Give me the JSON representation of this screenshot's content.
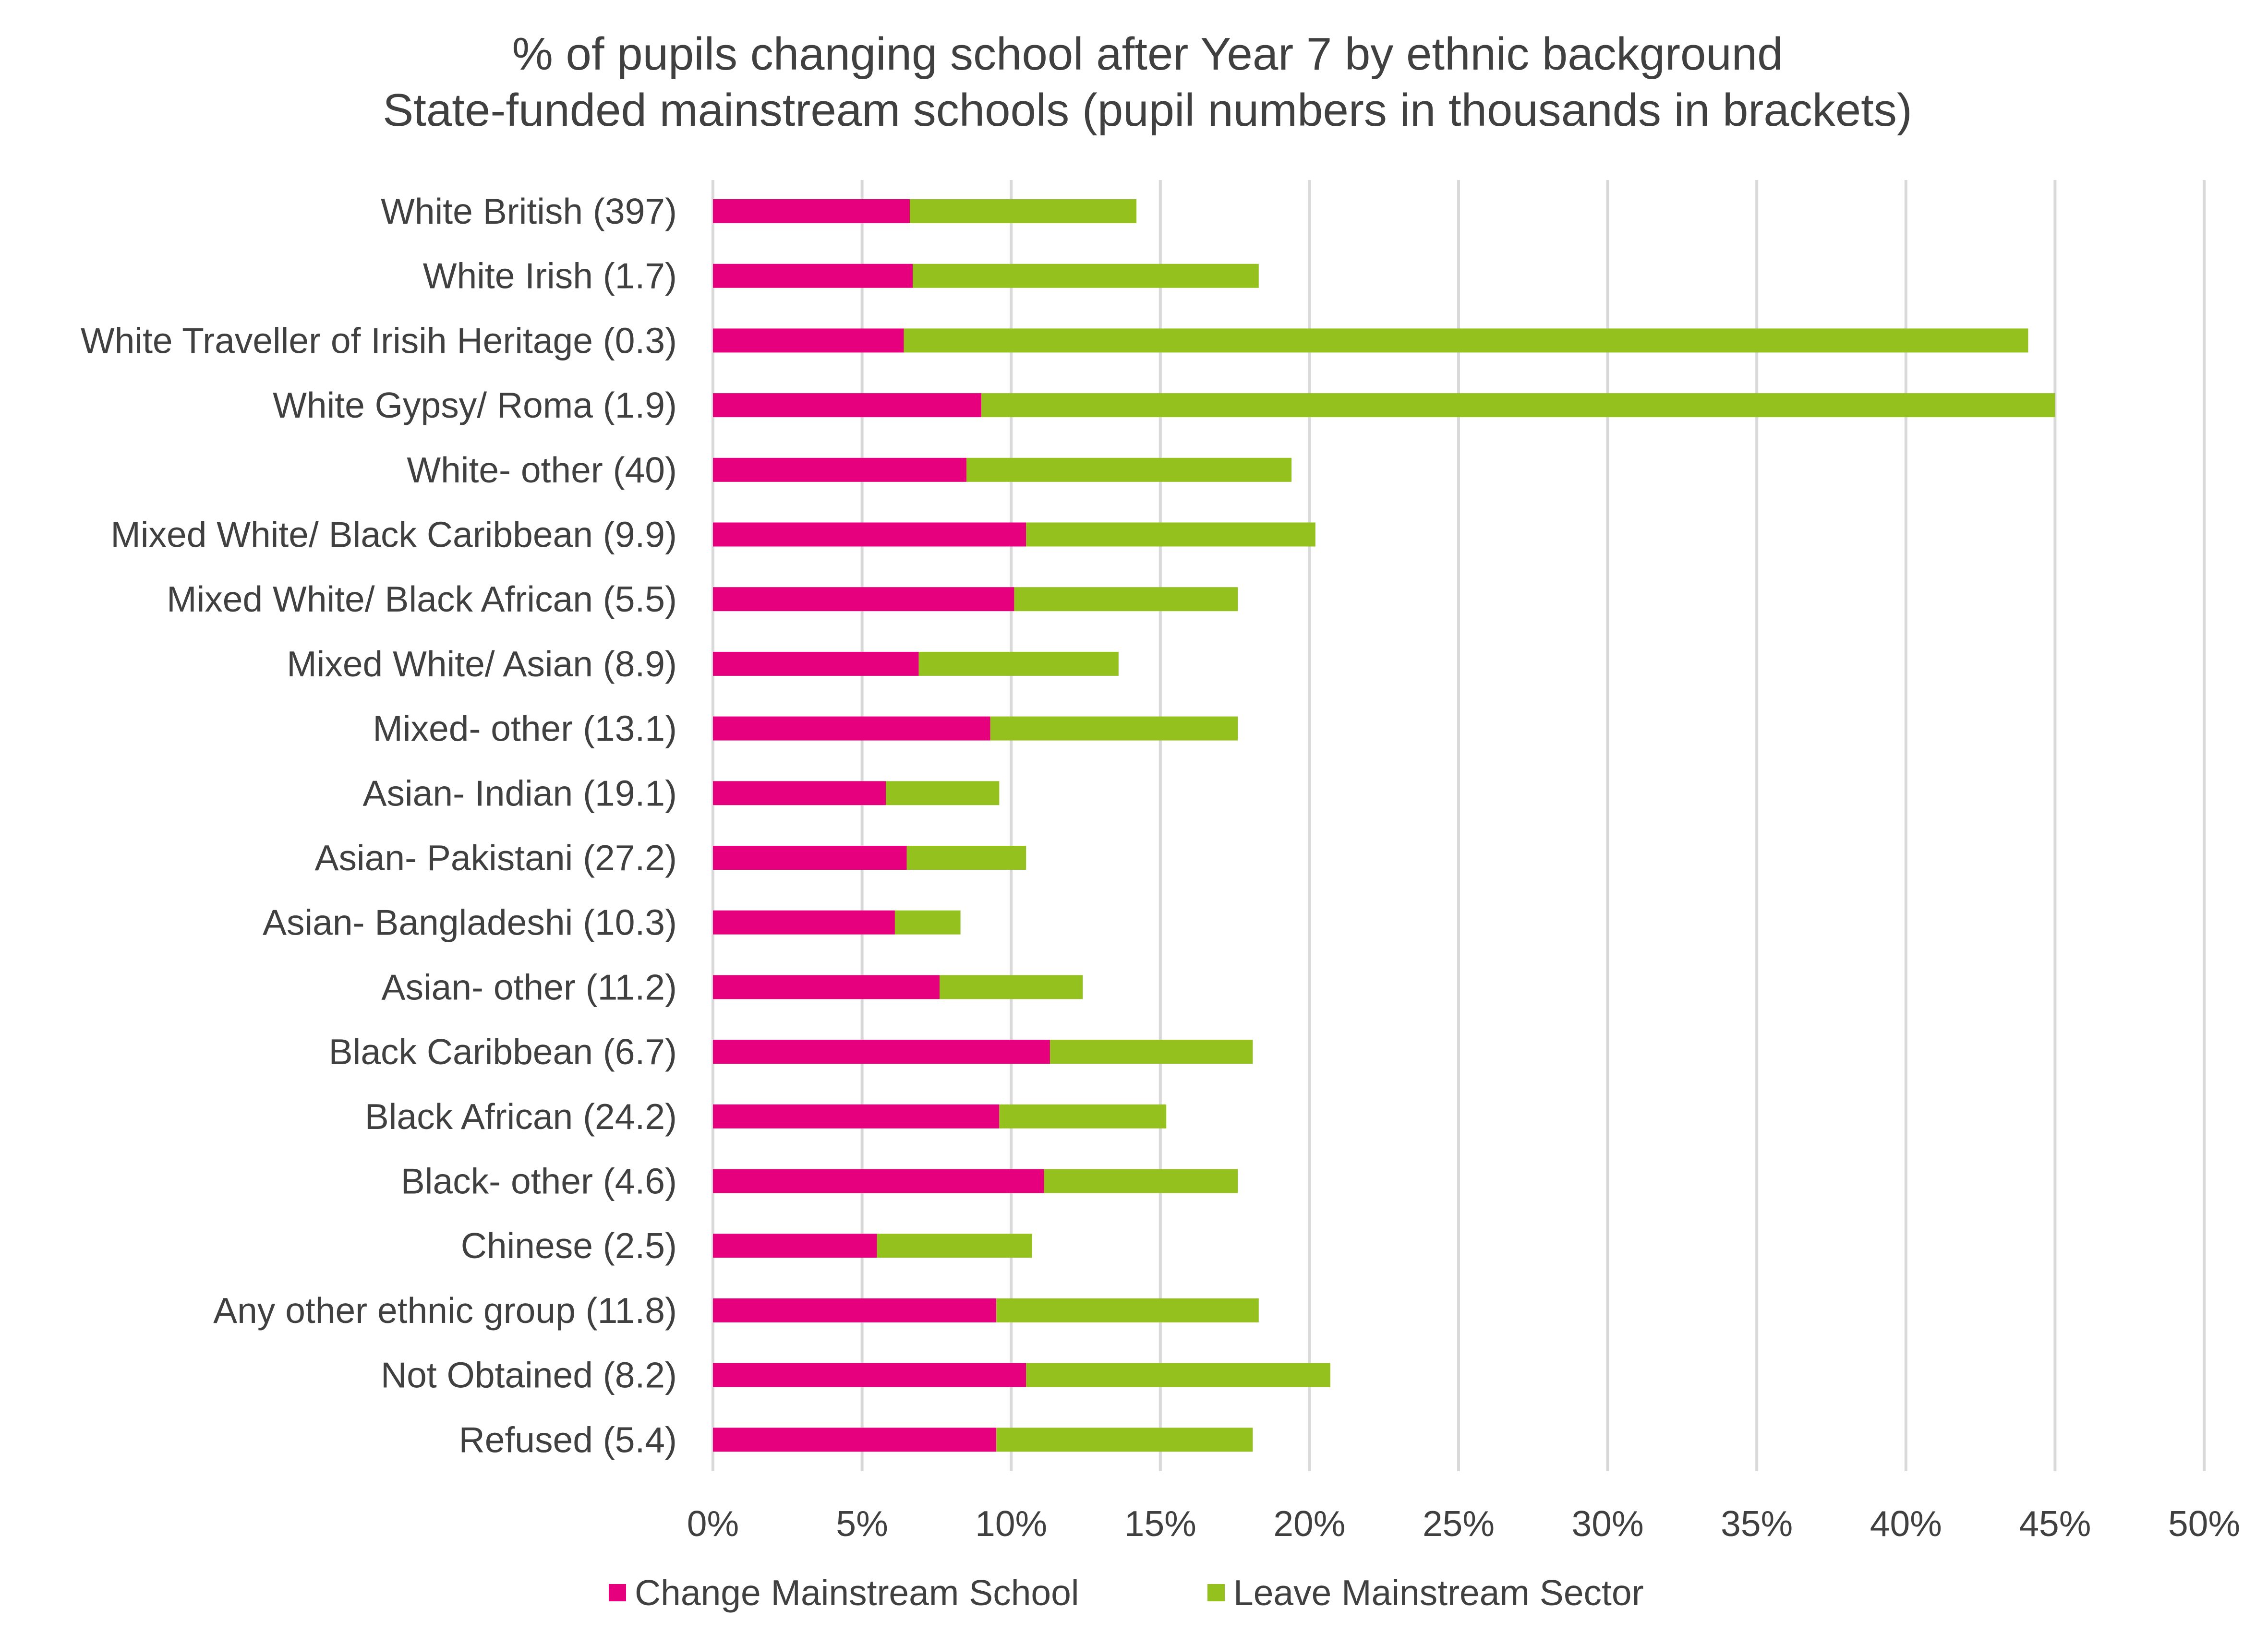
{
  "chart_data": {
    "type": "bar",
    "orientation": "horizontal",
    "stacked": true,
    "title": "% of pupils changing school after Year 7 by ethnic background",
    "subtitle": "State-funded mainstream schools (pupil numbers in thousands in brackets)",
    "xlabel": "",
    "ylabel": "",
    "xlim": [
      0,
      50
    ],
    "x_ticks": [
      {
        "value": 0,
        "label": "0%"
      },
      {
        "value": 5,
        "label": "5%"
      },
      {
        "value": 10,
        "label": "10%"
      },
      {
        "value": 15,
        "label": "15%"
      },
      {
        "value": 20,
        "label": "20%"
      },
      {
        "value": 25,
        "label": "25%"
      },
      {
        "value": 30,
        "label": "30%"
      },
      {
        "value": 35,
        "label": "35%"
      },
      {
        "value": 40,
        "label": "40%"
      },
      {
        "value": 45,
        "label": "45%"
      },
      {
        "value": 50,
        "label": "50%"
      }
    ],
    "grid": "vertical",
    "legend_position": "bottom",
    "categories": [
      "White British (397)",
      "White Irish (1.7)",
      "White Traveller of Irisih Heritage (0.3)",
      "White Gypsy/ Roma (1.9)",
      "White- other (40)",
      "Mixed White/ Black Caribbean (9.9)",
      "Mixed White/ Black African (5.5)",
      "Mixed White/ Asian (8.9)",
      "Mixed- other (13.1)",
      "Asian- Indian (19.1)",
      "Asian- Pakistani (27.2)",
      "Asian- Bangladeshi (10.3)",
      "Asian- other (11.2)",
      "Black Caribbean (6.7)",
      "Black African (24.2)",
      "Black- other (4.6)",
      "Chinese (2.5)",
      "Any other ethnic group (11.8)",
      "Not Obtained (8.2)",
      "Refused (5.4)"
    ],
    "series": [
      {
        "name": "Change Mainstream School",
        "color": "#e6007e",
        "values": [
          6.6,
          6.7,
          6.4,
          9.0,
          8.5,
          10.5,
          10.1,
          6.9,
          9.3,
          5.8,
          6.5,
          6.1,
          7.6,
          11.3,
          9.6,
          11.1,
          5.5,
          9.5,
          10.5,
          9.5
        ]
      },
      {
        "name": "Leave Mainstream Sector",
        "color": "#95c11f",
        "values": [
          7.6,
          11.6,
          37.7,
          36.0,
          10.9,
          9.7,
          7.5,
          6.7,
          8.3,
          3.8,
          4.0,
          2.2,
          4.8,
          6.8,
          5.6,
          6.5,
          5.2,
          8.8,
          10.2,
          8.6
        ]
      }
    ]
  }
}
